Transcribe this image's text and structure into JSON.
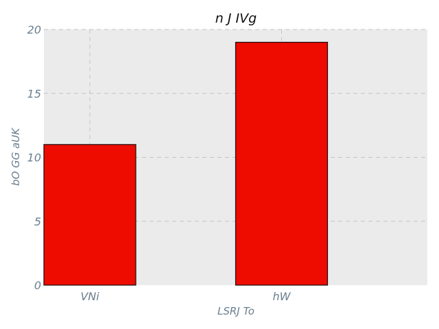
{
  "chart_data": {
    "type": "bar",
    "title": "n  J IVg",
    "xlabel": "LSRJ To",
    "ylabel": "bO GG aUK",
    "categories": [
      "VNi",
      "hW"
    ],
    "values": [
      11,
      19
    ],
    "ylim": [
      0,
      20
    ],
    "yticks": [
      0,
      5,
      10,
      15,
      20
    ],
    "grid": true,
    "bar_color": "#ee0b00",
    "bar_edge_color": "#111111",
    "background_color": "#ebebeb",
    "grid_color": "#c4c4c4",
    "text_color": "#6a7f8f"
  }
}
